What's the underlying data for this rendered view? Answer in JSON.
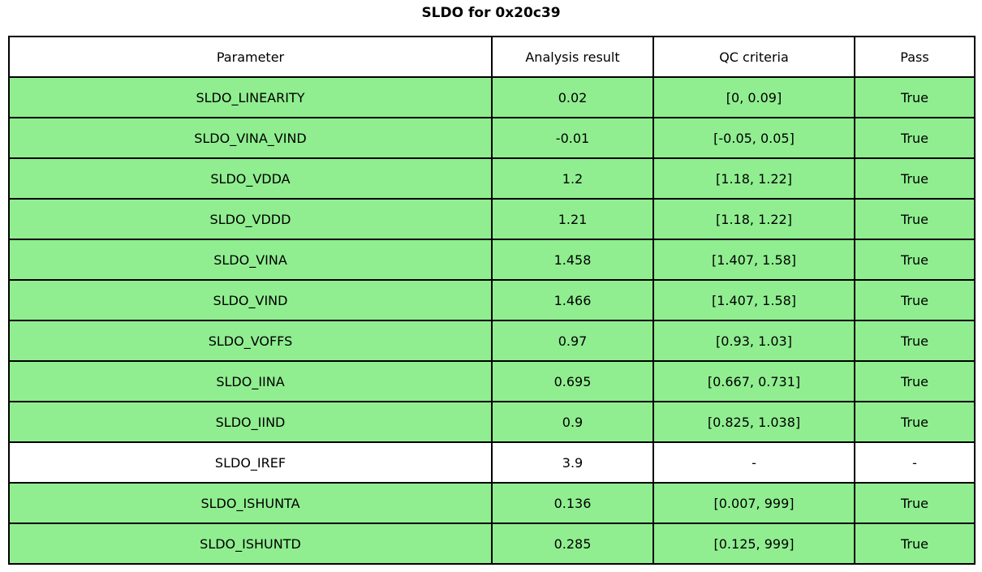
{
  "title": "SLDO for 0x20c39",
  "chart_data": {
    "type": "table",
    "title": "SLDO for 0x20c39",
    "columns": [
      "Parameter",
      "Analysis result",
      "QC criteria",
      "Pass"
    ],
    "highlight_color": "#90EE90",
    "border_color": "#000000",
    "rows": [
      {
        "parameter": "SLDO_LINEARITY",
        "analysis_result": "0.02",
        "qc_criteria": "[0, 0.09]",
        "pass": "True",
        "highlighted": true
      },
      {
        "parameter": "SLDO_VINA_VIND",
        "analysis_result": "-0.01",
        "qc_criteria": "[-0.05, 0.05]",
        "pass": "True",
        "highlighted": true
      },
      {
        "parameter": "SLDO_VDDA",
        "analysis_result": "1.2",
        "qc_criteria": "[1.18, 1.22]",
        "pass": "True",
        "highlighted": true
      },
      {
        "parameter": "SLDO_VDDD",
        "analysis_result": "1.21",
        "qc_criteria": "[1.18, 1.22]",
        "pass": "True",
        "highlighted": true
      },
      {
        "parameter": "SLDO_VINA",
        "analysis_result": "1.458",
        "qc_criteria": "[1.407, 1.58]",
        "pass": "True",
        "highlighted": true
      },
      {
        "parameter": "SLDO_VIND",
        "analysis_result": "1.466",
        "qc_criteria": "[1.407, 1.58]",
        "pass": "True",
        "highlighted": true
      },
      {
        "parameter": "SLDO_VOFFS",
        "analysis_result": "0.97",
        "qc_criteria": "[0.93, 1.03]",
        "pass": "True",
        "highlighted": true
      },
      {
        "parameter": "SLDO_IINA",
        "analysis_result": "0.695",
        "qc_criteria": "[0.667, 0.731]",
        "pass": "True",
        "highlighted": true
      },
      {
        "parameter": "SLDO_IIND",
        "analysis_result": "0.9",
        "qc_criteria": "[0.825, 1.038]",
        "pass": "True",
        "highlighted": true
      },
      {
        "parameter": "SLDO_IREF",
        "analysis_result": "3.9",
        "qc_criteria": "-",
        "pass": "-",
        "highlighted": false
      },
      {
        "parameter": "SLDO_ISHUNTA",
        "analysis_result": "0.136",
        "qc_criteria": "[0.007, 999]",
        "pass": "True",
        "highlighted": true
      },
      {
        "parameter": "SLDO_ISHUNTD",
        "analysis_result": "0.285",
        "qc_criteria": "[0.125, 999]",
        "pass": "True",
        "highlighted": true
      }
    ]
  }
}
